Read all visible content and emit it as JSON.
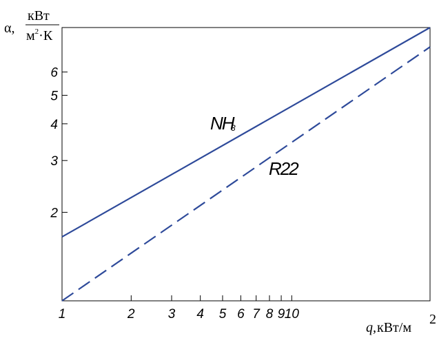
{
  "chart_data": {
    "type": "line",
    "x_scale": "log",
    "y_scale": "log",
    "xlim": [
      1,
      40
    ],
    "ylim": [
      1,
      8.5
    ],
    "grid": false,
    "xticks": [
      1,
      2,
      3,
      4,
      5,
      6,
      7,
      8,
      9,
      10
    ],
    "xtick_labels": [
      "1",
      "2",
      "3",
      "4",
      "5",
      "6",
      "7",
      "8",
      "9",
      "10"
    ],
    "yticks": [
      2,
      3,
      4,
      5,
      6
    ],
    "ytick_labels": [
      "2",
      "3",
      "4",
      "5",
      "6"
    ],
    "xlabel": {
      "symbol": "q,",
      "unit": "кВт/м",
      "exp": "2"
    },
    "ylabel": {
      "symbol": "α,",
      "num": "кВт",
      "den_pre": "м",
      "den_exp": "2",
      "den_post": "·К"
    },
    "series": [
      {
        "name": "NH3",
        "label_main": "NH",
        "label_sub": "3",
        "style": "solid",
        "color": "#2e4a9a",
        "x": [
          1,
          40
        ],
        "y": [
          1.65,
          8.5
        ]
      },
      {
        "name": "R22",
        "label_main": "R22",
        "style": "dashed",
        "color": "#2e4a9a",
        "x": [
          1,
          40
        ],
        "y": [
          1.0,
          7.3
        ]
      }
    ]
  }
}
